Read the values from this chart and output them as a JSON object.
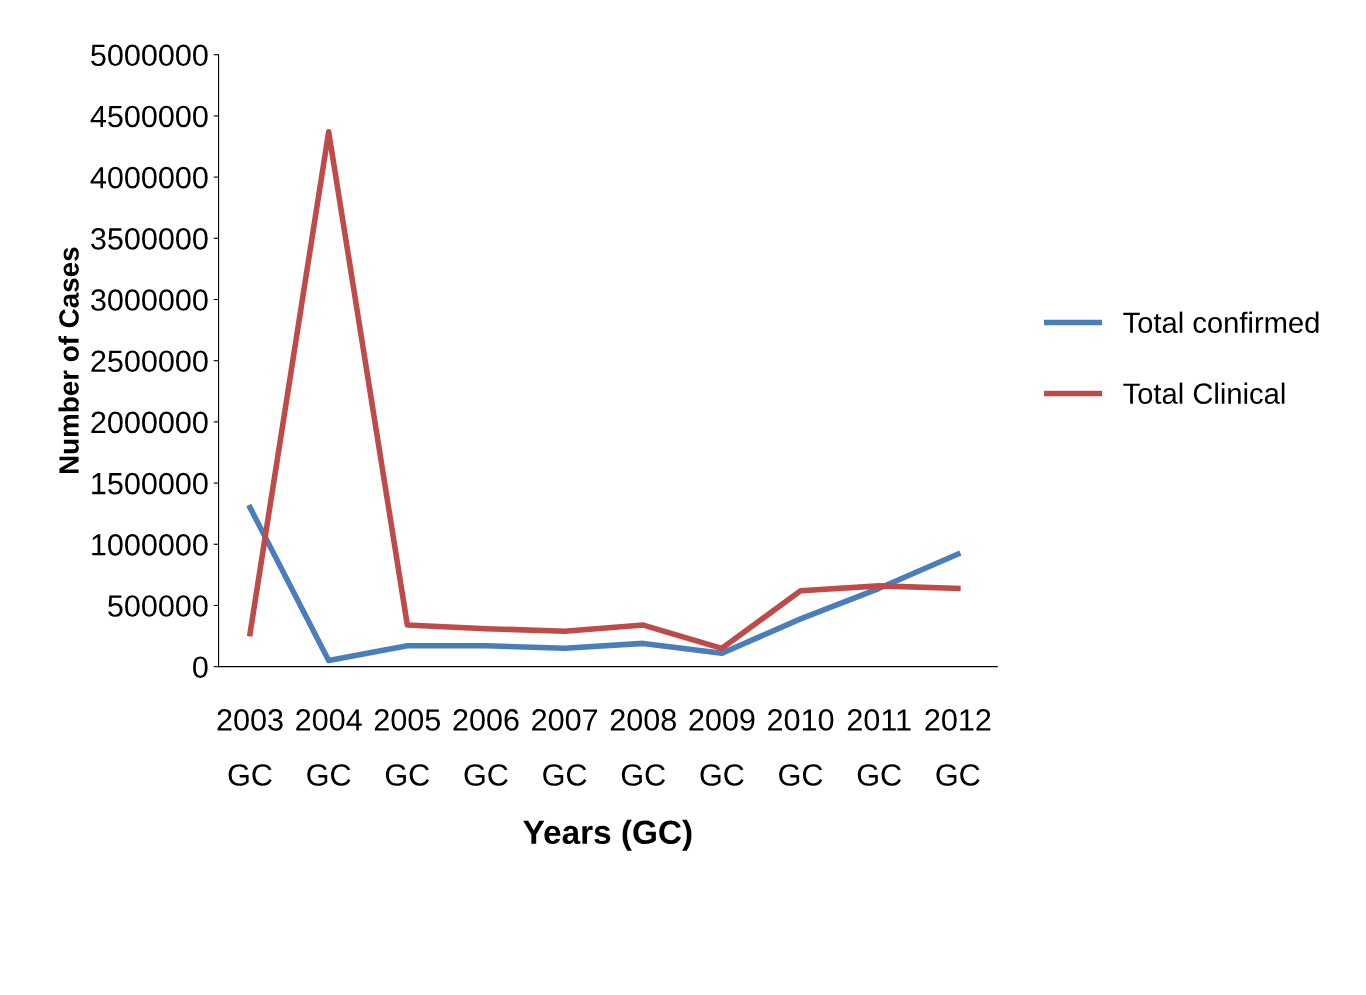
{
  "chart_data": {
    "type": "line",
    "xlabel": "Years (GC)",
    "ylabel": "Number of Cases",
    "categories": [
      "2003\nGC",
      "2004\nGC",
      "2005\nGC",
      "2006\nGC",
      "2007\nGC",
      "2008\nGC",
      "2009\nGC",
      "2010\nGC",
      "2011\nGC",
      "2012\nGC"
    ],
    "series": [
      {
        "name": "Total confirmed",
        "color": "#4a7ebb",
        "values": [
          1300000,
          50000,
          170000,
          170000,
          150000,
          190000,
          110000,
          390000,
          640000,
          920000
        ]
      },
      {
        "name": "Total Clinical",
        "color": "#be4b48",
        "values": [
          270000,
          4370000,
          340000,
          310000,
          290000,
          340000,
          150000,
          620000,
          660000,
          640000
        ]
      }
    ],
    "ylim": [
      0,
      5000000
    ],
    "yticks": [
      0,
      500000,
      1000000,
      1500000,
      2000000,
      2500000,
      3000000,
      3500000,
      4000000,
      4500000,
      5000000
    ],
    "grid": false,
    "legend": "right",
    "marker": "none",
    "line_style": "solid"
  }
}
